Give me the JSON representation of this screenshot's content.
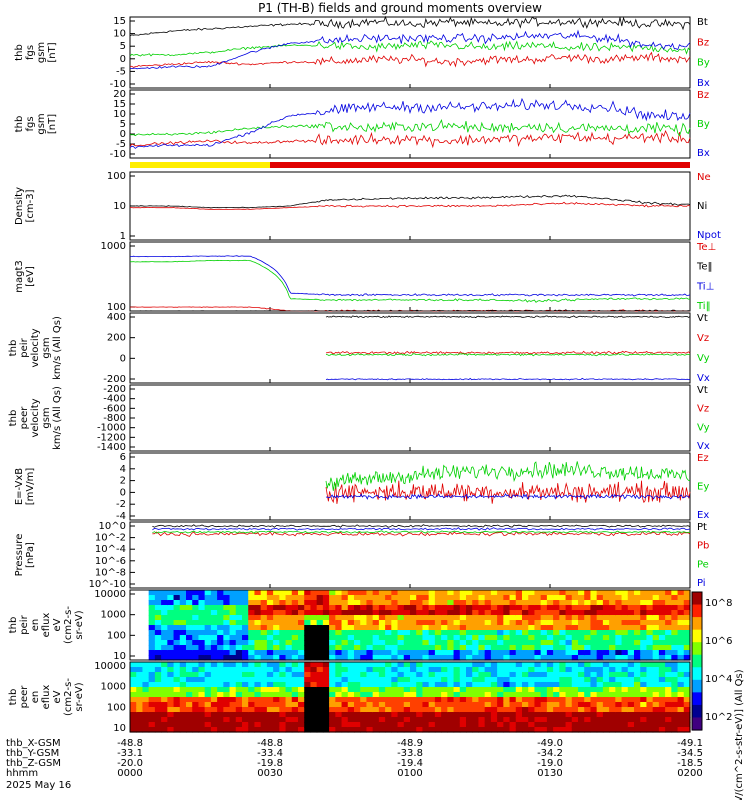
{
  "title": "P1 (TH-B) fields and ground moments overview",
  "colors": {
    "black": "#000000",
    "red": "#e00000",
    "green": "#00d000",
    "blue": "#0000e0",
    "yellow": "#ffee00"
  },
  "status_bar": {
    "segments": [
      {
        "x_from": 0,
        "x_to": 0.5,
        "color": "yellow"
      },
      {
        "x_from": 0.5,
        "x_to": 2,
        "color": "red"
      }
    ]
  },
  "time_axis": {
    "ticks": [
      "0000",
      "0030",
      "0100",
      "0130",
      "0200"
    ],
    "rows": [
      {
        "label": "thb_X-GSM",
        "values": [
          "-48.8",
          "-48.8",
          "-48.9",
          "-49.0",
          "-49.1"
        ]
      },
      {
        "label": "thb_Y-GSM",
        "values": [
          "-33.1",
          "-33.4",
          "-33.8",
          "-34.2",
          "-34.5"
        ]
      },
      {
        "label": "thb_Z-GSM",
        "values": [
          "-20.0",
          "-19.8",
          "-19.4",
          "-19.0",
          "-18.5"
        ]
      },
      {
        "label": "hhmm",
        "values": [
          "0000",
          "0030",
          "0100",
          "0130",
          "0200"
        ]
      }
    ],
    "date": "2025 May 16"
  },
  "colorbar": {
    "ticks": [
      "10^8",
      "10^6",
      "10^4",
      "10^2"
    ],
    "label": "[eV/(cm^2-s-str-eV)] (All Qs)"
  },
  "chart_data": [
    {
      "type": "line",
      "ylabel": [
        "thb",
        "fgs",
        "gsm",
        "[nT]"
      ],
      "ylim": [
        -15,
        15
      ],
      "yticks": [
        "15",
        "10",
        "5",
        "0",
        "-5",
        "-10"
      ],
      "series": [
        {
          "name": "Bt",
          "color": "black",
          "values": [
            7,
            9,
            10,
            11,
            12,
            12,
            13,
            12,
            13,
            12,
            13,
            13,
            13,
            12,
            12
          ]
        },
        {
          "name": "Bz",
          "color": "red",
          "values": [
            -6,
            -5,
            -4,
            -5,
            -4,
            -4,
            -3,
            -3,
            -4,
            -3,
            -3,
            -2,
            -3,
            -2,
            -3
          ]
        },
        {
          "name": "By",
          "color": "green",
          "values": [
            -1,
            -1,
            0,
            2,
            3,
            3,
            2,
            3,
            3,
            2,
            3,
            2,
            2,
            2,
            1
          ]
        },
        {
          "name": "Bx",
          "color": "blue",
          "values": [
            -7,
            -6,
            -6,
            0,
            4,
            5,
            6,
            6,
            6,
            6,
            7,
            7,
            6,
            3,
            3
          ]
        }
      ]
    },
    {
      "type": "line",
      "ylabel": [
        "thb",
        "fgs",
        "gsm",
        "[nT]"
      ],
      "ylim": [
        -12,
        20
      ],
      "yticks": [
        "20",
        "15",
        "10",
        "5",
        "0",
        "-5",
        "-10"
      ],
      "series": [
        {
          "name": "Bz",
          "color": "red",
          "values": [
            -6,
            -5,
            -4,
            -5,
            -4,
            -4,
            -3,
            -3,
            -4,
            -3,
            -3,
            -2,
            -3,
            -2,
            -3
          ]
        },
        {
          "name": "By",
          "color": "green",
          "values": [
            -1,
            -1,
            0,
            2,
            3,
            3,
            2,
            3,
            3,
            2,
            3,
            2,
            2,
            2,
            1
          ]
        },
        {
          "name": "Bx",
          "color": "blue",
          "values": [
            -7,
            -6,
            -6,
            0,
            8,
            10,
            12,
            12,
            12,
            12,
            13,
            13,
            12,
            8,
            7
          ]
        }
      ]
    },
    {
      "type": "line",
      "log": true,
      "ylabel": [
        "Density",
        "[cm-3]"
      ],
      "ylim": [
        1,
        100
      ],
      "yticks": [
        "100",
        "10",
        "1"
      ],
      "series": [
        {
          "name": "Ne",
          "color": "red",
          "values": [
            9,
            9,
            8,
            8,
            9,
            10,
            10,
            10,
            10,
            10,
            11,
            12,
            11,
            10,
            10
          ]
        },
        {
          "name": "Ni",
          "color": "black",
          "values": [
            10,
            10,
            9,
            9,
            10,
            15,
            16,
            17,
            17,
            18,
            19,
            20,
            16,
            12,
            11
          ]
        },
        {
          "name": "Npot",
          "color": "blue",
          "values": []
        }
      ]
    },
    {
      "type": "line",
      "log": true,
      "ylabel": [
        "magt3",
        "[eV]"
      ],
      "ylim": [
        40,
        2000
      ],
      "yticks": [
        "1000",
        "100"
      ],
      "series": [
        {
          "name": "Te⊥",
          "color": "red",
          "values": [
            50,
            50,
            50,
            50,
            40,
            40,
            40,
            40,
            40,
            40,
            40,
            40,
            40,
            40,
            40
          ]
        },
        {
          "name": "Te‖",
          "color": "black",
          "values": [
            40,
            40,
            40,
            40,
            40,
            40,
            40,
            40,
            40,
            40,
            40,
            40,
            40,
            40,
            40
          ]
        },
        {
          "name": "Ti⊥",
          "color": "blue",
          "values": [
            880,
            880,
            900,
            900,
            110,
            100,
            100,
            100,
            100,
            100,
            100,
            100,
            100,
            100,
            100
          ]
        },
        {
          "name": "Ti‖",
          "color": "green",
          "values": [
            650,
            650,
            700,
            700,
            80,
            75,
            75,
            75,
            75,
            75,
            70,
            75,
            80,
            80,
            80
          ]
        }
      ]
    },
    {
      "type": "line",
      "ylabel": [
        "thb",
        "peir",
        "velocity",
        "gsm",
        "km/s (All Qs)"
      ],
      "ylim": [
        0,
        400
      ],
      "yticks": [
        "400",
        "200",
        "0",
        "-200"
      ],
      "series": [
        {
          "name": "Vt",
          "color": "black",
          "values": []
        },
        {
          "name": "Vz",
          "color": "red",
          "values": []
        },
        {
          "name": "Vy",
          "color": "green",
          "values": []
        },
        {
          "name": "Vx",
          "color": "blue",
          "values": []
        }
      ]
    },
    {
      "type": "line",
      "ylabel": [
        "thb",
        "peer",
        "velocity",
        "gsm",
        "km/s (All Qs)"
      ],
      "ylim": [
        -1400,
        0
      ],
      "yticks": [
        "-200",
        "-400",
        "-600",
        "-800",
        "-1000",
        "-1200",
        "-1400"
      ],
      "series": [
        {
          "name": "Vt",
          "color": "black",
          "values": []
        },
        {
          "name": "Vz",
          "color": "red",
          "values": []
        },
        {
          "name": "Vy",
          "color": "green",
          "values": []
        },
        {
          "name": "Vx",
          "color": "blue",
          "values": []
        }
      ]
    },
    {
      "type": "line",
      "ylabel": [
        "E=-VxB",
        "[mV/m]"
      ],
      "ylim": [
        -4,
        6
      ],
      "yticks": [
        "6",
        "4",
        "2",
        "0",
        "-2",
        "-4"
      ],
      "series": [
        {
          "name": "Ez",
          "color": "red",
          "values": []
        },
        {
          "name": "Ey",
          "color": "green",
          "values": []
        },
        {
          "name": "Ex",
          "color": "blue",
          "values": []
        }
      ]
    },
    {
      "type": "line",
      "log": true,
      "ylabel": [
        "Pressure",
        "[nPa]"
      ],
      "ylim": [
        1e-12,
        1
      ],
      "yticks": [
        "10^0",
        "10^-2",
        "10^-4",
        "10^-6",
        "10^-8",
        "10^-10"
      ],
      "series": [
        {
          "name": "Pt",
          "color": "black",
          "values": []
        },
        {
          "name": "Pb",
          "color": "red",
          "values": []
        },
        {
          "name": "Pe",
          "color": "green",
          "values": []
        },
        {
          "name": "Pi",
          "color": "blue",
          "values": []
        }
      ]
    },
    {
      "type": "heatmap",
      "ylabel": [
        "thb",
        "peir",
        "en",
        "eflux",
        "eV",
        "(cm2-s-",
        "sr-eV)"
      ],
      "yticks": [
        "10000",
        "1000",
        "100",
        "10"
      ]
    },
    {
      "type": "heatmap",
      "ylabel": [
        "thb",
        "peer",
        "en",
        "eflux",
        "eV",
        "(cm2-s-",
        "sr-eV)"
      ],
      "yticks": [
        "10000",
        "1000",
        "100",
        "10"
      ]
    }
  ]
}
